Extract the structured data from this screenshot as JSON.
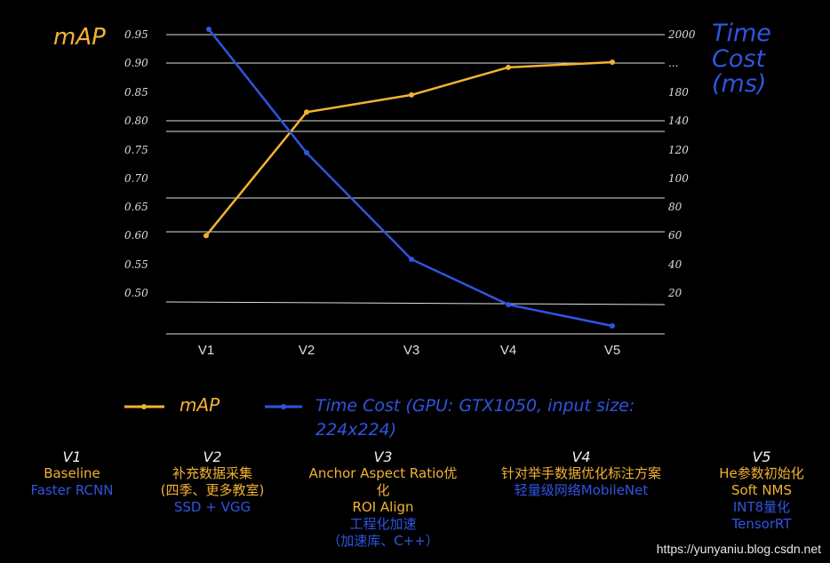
{
  "chart_data": {
    "type": "line",
    "categories": [
      "V1",
      "V2",
      "V3",
      "V4",
      "V5"
    ],
    "series": [
      {
        "name": "mAP",
        "axis": "left",
        "color": "#f2b233",
        "values": [
          0.6,
          0.815,
          0.845,
          0.893,
          0.902
        ]
      },
      {
        "name": "Time Cost",
        "axis": "right",
        "color": "#2f55e0",
        "values": [
          205,
          120,
          45,
          14,
          0
        ]
      }
    ],
    "left_axis": {
      "title": "mAP",
      "ticks": [
        "0.95",
        "0.90",
        "0.85",
        "0.80",
        "0.75",
        "0.70",
        "0.65",
        "0.60",
        "0.55",
        "0.50"
      ]
    },
    "right_axis": {
      "title_lines": [
        "Time",
        "Cost",
        "(ms)"
      ],
      "ticks": [
        "2000",
        "...",
        "180",
        "140",
        "120",
        "100",
        "80",
        "60",
        "40",
        "20"
      ]
    },
    "legend": [
      {
        "label": "mAP",
        "color": "#f2b233"
      },
      {
        "label": "Time Cost (GPU: GTX1050, input size:",
        "label2": "224x224)",
        "color": "#2f55e0"
      }
    ]
  },
  "versions": [
    {
      "title": "V1",
      "lines": [
        {
          "text": "Baseline",
          "color": "o"
        },
        {
          "text": "Faster RCNN",
          "color": "b"
        }
      ]
    },
    {
      "title": "V2",
      "lines": [
        {
          "text": "补充数据采集",
          "color": "o"
        },
        {
          "text": "(四季、更多教室)",
          "color": "o"
        },
        {
          "text": "SSD + VGG",
          "color": "b"
        }
      ]
    },
    {
      "title": "V3",
      "lines": [
        {
          "text": "Anchor Aspect Ratio优",
          "color": "o"
        },
        {
          "text": "化",
          "color": "o"
        },
        {
          "text": "ROI Align",
          "color": "o"
        },
        {
          "text": "工程化加速",
          "color": "b"
        },
        {
          "text": "（加速库、C++）",
          "color": "b"
        }
      ]
    },
    {
      "title": "V4",
      "lines": [
        {
          "text": "针对举手数据优化标注方案",
          "color": "o"
        },
        {
          "text": "轻量级网络MobileNet",
          "color": "b"
        }
      ]
    },
    {
      "title": "V5",
      "lines": [
        {
          "text": "He参数初始化",
          "color": "o"
        },
        {
          "text": "Soft NMS",
          "color": "o"
        },
        {
          "text": "INT8量化",
          "color": "b"
        },
        {
          "text": "TensorRT",
          "color": "b"
        }
      ]
    }
  ],
  "watermark": "https://yunyaniu.blog.csdn.net"
}
